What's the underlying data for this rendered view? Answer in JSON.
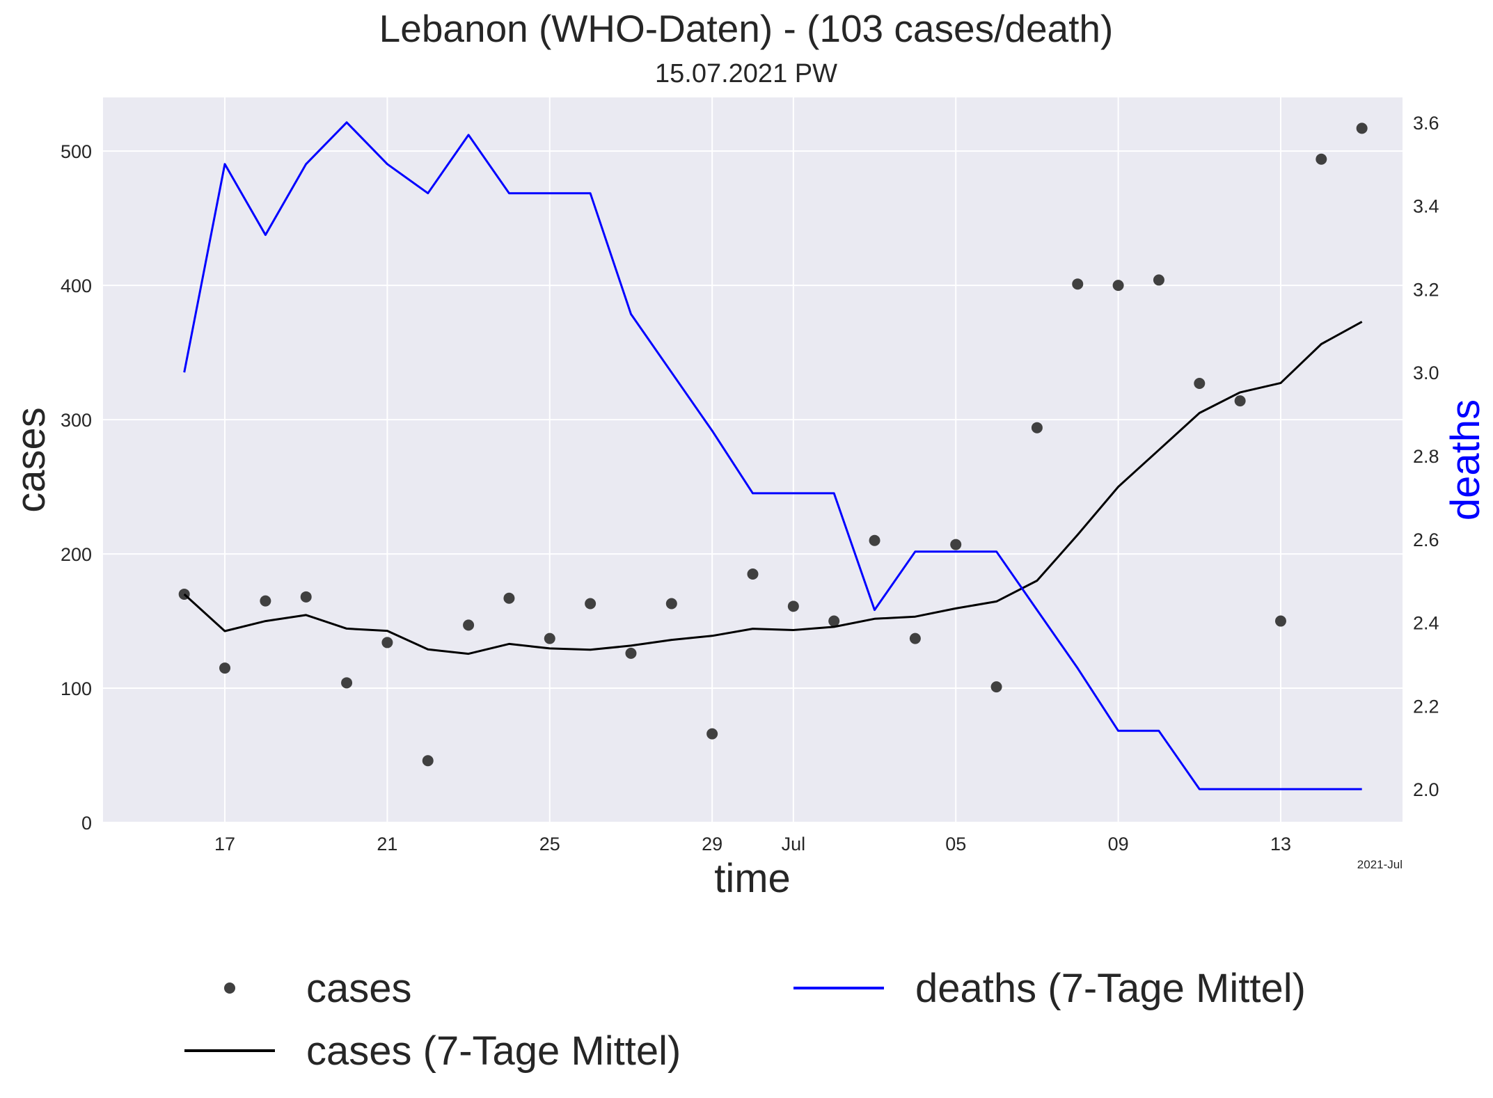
{
  "chart_data": {
    "type": "line",
    "title": "Lebanon (WHO-Daten) - (103 cases/death)",
    "subtitle": "15.07.2021 PW",
    "xlabel": "time",
    "ylabel": "cases",
    "y2label": "deaths",
    "x_offset_label": "2021-Jul",
    "x_ticks": [
      "17",
      "21",
      "25",
      "29",
      "Jul",
      "05",
      "09",
      "13"
    ],
    "x_tick_dates": [
      "2021-06-17",
      "2021-06-21",
      "2021-06-25",
      "2021-06-29",
      "2021-07-01",
      "2021-07-05",
      "2021-07-09",
      "2021-07-13"
    ],
    "xlim": [
      "2021-06-14",
      "2021-07-16"
    ],
    "ylim": [
      0,
      540
    ],
    "y_ticks": [
      0,
      100,
      200,
      300,
      400,
      500
    ],
    "y2lim": [
      1.92,
      3.66
    ],
    "y2_ticks": [
      "2.0",
      "2.2",
      "2.4",
      "2.6",
      "2.8",
      "3.0",
      "3.2",
      "3.4",
      "3.6"
    ],
    "dates": [
      "2021-06-16",
      "2021-06-17",
      "2021-06-18",
      "2021-06-19",
      "2021-06-20",
      "2021-06-21",
      "2021-06-22",
      "2021-06-23",
      "2021-06-24",
      "2021-06-25",
      "2021-06-26",
      "2021-06-27",
      "2021-06-28",
      "2021-06-29",
      "2021-06-30",
      "2021-07-01",
      "2021-07-02",
      "2021-07-03",
      "2021-07-04",
      "2021-07-05",
      "2021-07-06",
      "2021-07-07",
      "2021-07-08",
      "2021-07-09",
      "2021-07-10",
      "2021-07-11",
      "2021-07-12",
      "2021-07-13",
      "2021-07-14",
      "2021-07-15"
    ],
    "series": [
      {
        "name": "cases",
        "kind": "scatter",
        "axis": "left",
        "color": "#404040",
        "values": [
          170,
          115,
          165,
          168,
          104,
          134,
          46,
          147,
          167,
          137,
          163,
          126,
          163,
          66,
          185,
          161,
          150,
          210,
          137,
          207,
          101,
          294,
          401,
          400,
          404,
          327,
          314,
          150,
          494,
          517
        ]
      },
      {
        "name": "cases (7-Tage Mittel)",
        "kind": "line",
        "axis": "left",
        "color": "#000000",
        "values": [
          170,
          142.5,
          150,
          154.5,
          144.4,
          142.7,
          128.9,
          125.6,
          133,
          129.6,
          128.6,
          131.7,
          136,
          139,
          144.3,
          143.3,
          145.7,
          151.7,
          153.3,
          159.4,
          164.6,
          180.1,
          214.3,
          250,
          277.4,
          305,
          320.3,
          327.3,
          356.3,
          372.9
        ]
      },
      {
        "name": "deaths (7-Tage Mittel)",
        "kind": "line",
        "axis": "right",
        "color": "#0000ff",
        "values": [
          3.0,
          3.5,
          3.33,
          3.5,
          3.6,
          3.5,
          3.43,
          3.57,
          3.43,
          3.43,
          3.43,
          3.14,
          3.0,
          2.86,
          2.71,
          2.71,
          2.71,
          2.43,
          2.57,
          2.57,
          2.57,
          2.43,
          2.29,
          2.14,
          2.14,
          2.0,
          2.0,
          2.0,
          2.0,
          2.0
        ]
      }
    ],
    "grid": true,
    "legend_position": "below"
  }
}
